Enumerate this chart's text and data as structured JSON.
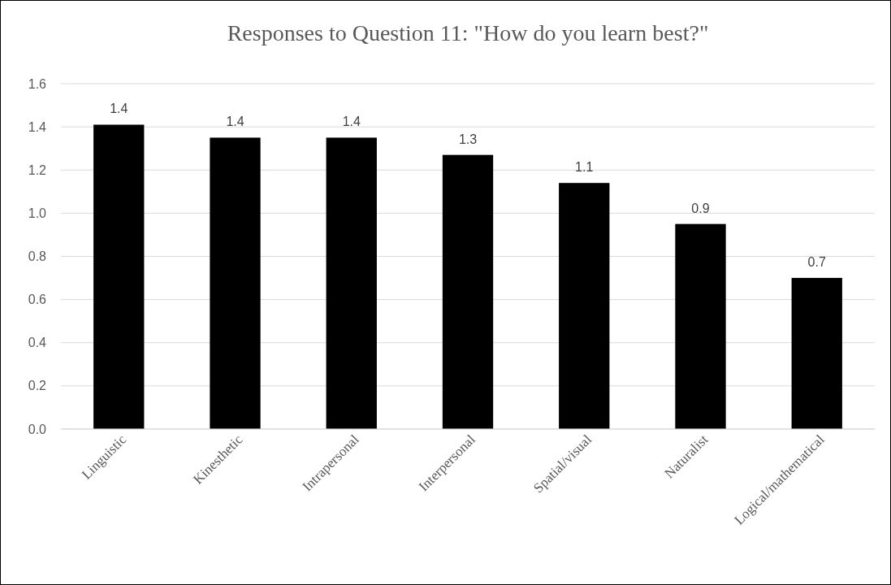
{
  "chart_data": {
    "type": "bar",
    "title": "Responses to Question 11: \"How do you learn best?\"",
    "categories": [
      "Linguistic",
      "Kinesthetic",
      "Intrapersonal",
      "Interpersonal",
      "Spatial/visual",
      "Naturalist",
      "Logical/mathematical"
    ],
    "values": [
      1.41,
      1.35,
      1.35,
      1.27,
      1.14,
      0.95,
      0.7
    ],
    "value_labels": [
      "1.4",
      "1.4",
      "1.4",
      "1.3",
      "1.1",
      "0.9",
      "0.7"
    ],
    "color": "#000000",
    "ylim": [
      0,
      1.6
    ],
    "yticks": [
      {
        "value": 0,
        "label": "0.0"
      },
      {
        "value": 0.2,
        "label": "0.2"
      },
      {
        "value": 0.4,
        "label": "0.4"
      },
      {
        "value": 0.6,
        "label": "0.6"
      },
      {
        "value": 0.8,
        "label": "0.8"
      },
      {
        "value": 1,
        "label": "1.0"
      },
      {
        "value": 1.2,
        "label": "1.2"
      },
      {
        "value": 1.4,
        "label": "1.4"
      },
      {
        "value": 1.6,
        "label": "1.6"
      }
    ],
    "grid": "y"
  }
}
